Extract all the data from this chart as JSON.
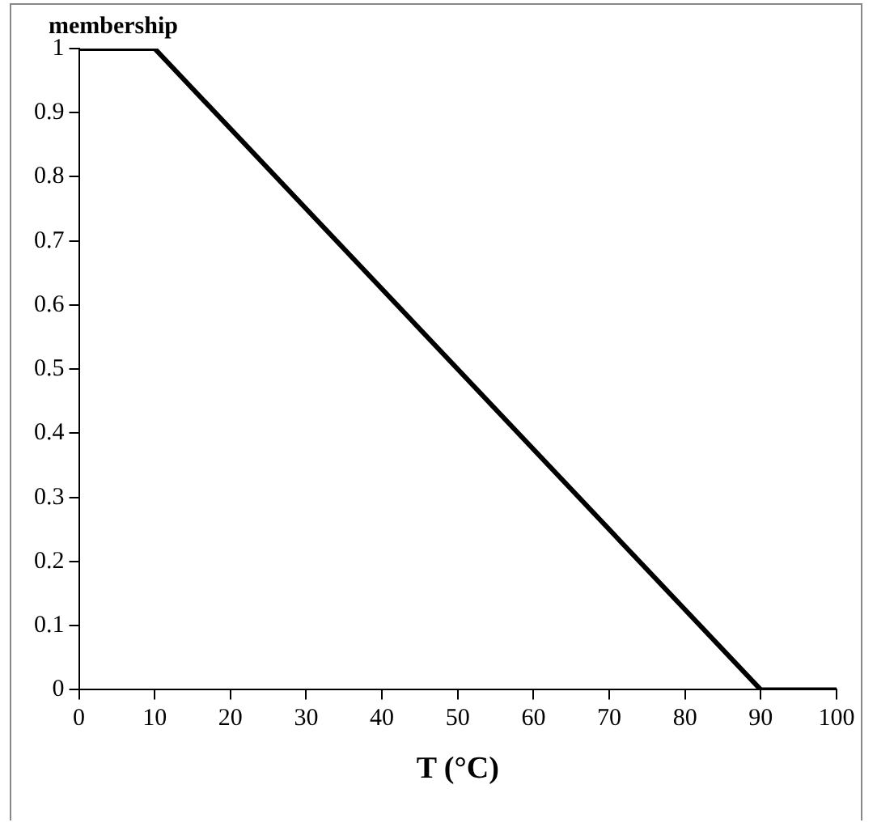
{
  "chart_data": {
    "type": "line",
    "ylabel": "membership",
    "xlabel": "T (°C)",
    "series": [
      {
        "color": "#000000",
        "x": [
          0,
          10,
          90,
          100
        ],
        "values": [
          1,
          1,
          0,
          0
        ]
      }
    ],
    "xlim": [
      0,
      100
    ],
    "xticks": [
      0,
      10,
      20,
      30,
      40,
      50,
      60,
      70,
      80,
      90,
      100
    ],
    "ylim": [
      0,
      1
    ],
    "yticks": [
      0,
      0.1,
      0.2,
      0.3,
      0.4,
      0.5,
      0.6,
      0.7,
      0.8,
      0.9,
      1
    ],
    "grid": false,
    "legend": false,
    "marker": "none",
    "line_style": "solid"
  }
}
